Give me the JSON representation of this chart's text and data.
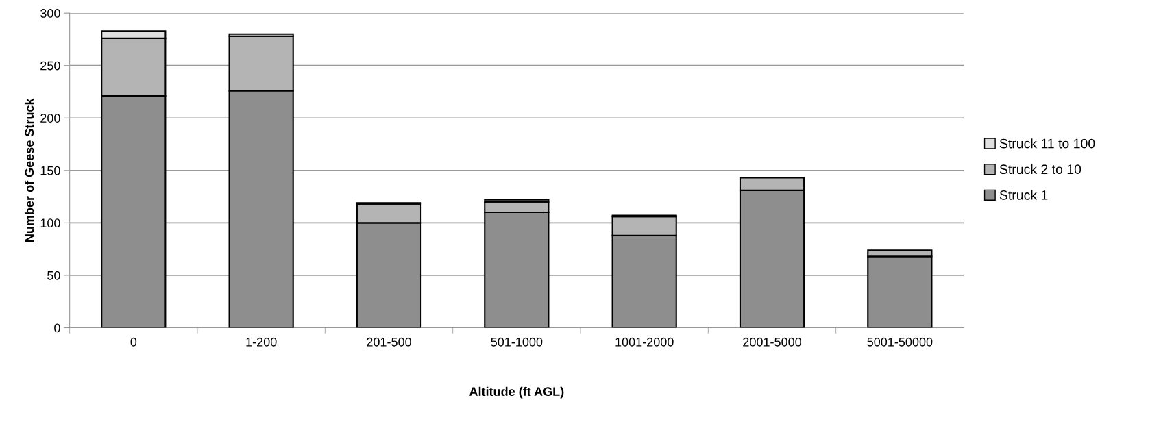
{
  "chart_data": {
    "type": "bar",
    "stacked": true,
    "xlabel": "Altitude (ft AGL)",
    "ylabel": "Number of Geese Struck",
    "categories": [
      "0",
      "1-200",
      "201-500",
      "501-1000",
      "1001-2000",
      "2001-5000",
      "5001-50000"
    ],
    "series": [
      {
        "name": "Struck 1",
        "color": "#8e8e8e",
        "values": [
          221,
          226,
          100,
          110,
          88,
          131,
          68
        ]
      },
      {
        "name": "Struck 2 to 10",
        "color": "#b4b4b4",
        "values": [
          55,
          52,
          18,
          10,
          18,
          12,
          6
        ]
      },
      {
        "name": "Struck 11 to 100",
        "color": "#e0e0e0",
        "values": [
          7,
          2,
          1,
          2,
          1,
          null,
          null
        ]
      }
    ],
    "ylim": [
      0,
      300
    ],
    "yticks": [
      0,
      50,
      100,
      150,
      200,
      250,
      300
    ],
    "grid": "y",
    "legend": "right"
  }
}
